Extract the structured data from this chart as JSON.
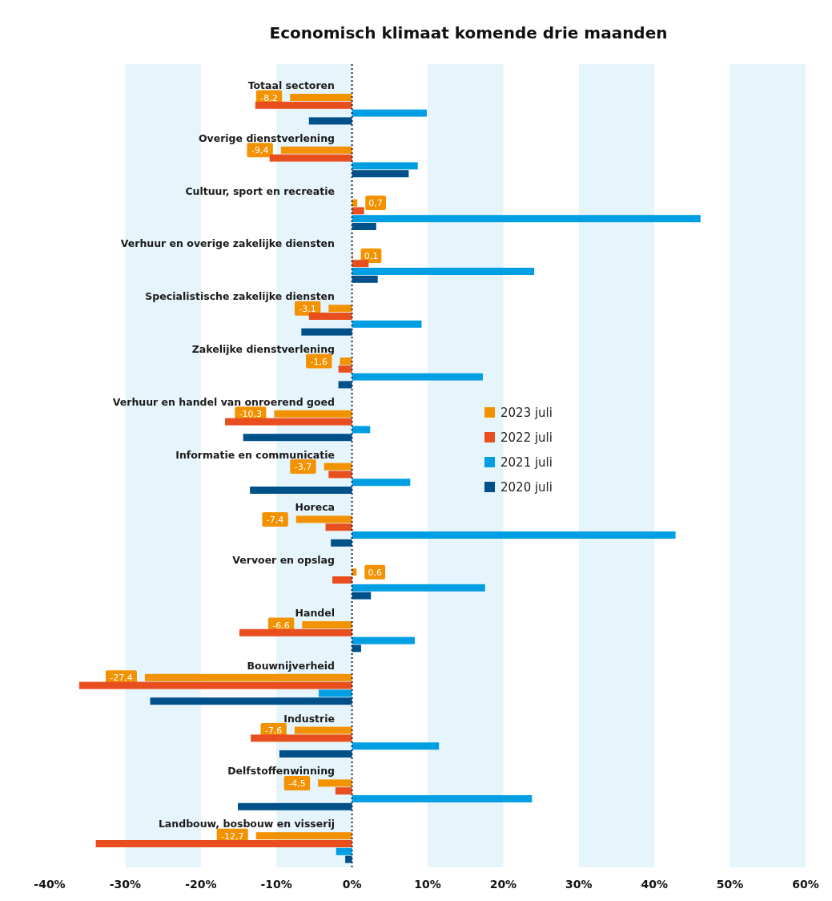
{
  "chart_data": {
    "type": "bar",
    "orientation": "horizontal",
    "title": "Economisch klimaat komende drie maanden",
    "categories": [
      "Totaal sectoren",
      "Overige dienstverlening",
      "Cultuur, sport en recreatie",
      "Verhuur en overige zakelijke diensten",
      "Specialistische zakelijke diensten",
      "Zakelijke dienstverlening",
      "Verhuur en handel van onroerend goed",
      "Informatie en communicatie",
      "Horeca",
      "Vervoer en opslag",
      "Handel",
      "Bouwnijverheid",
      "Industrie",
      "Delfstoffenwinning",
      "Landbouw, bosbouw en visserij"
    ],
    "series": [
      {
        "name": "2023 juli",
        "color": "#f39200",
        "values": [
          -8.2,
          -9.4,
          0.7,
          0.1,
          -3.1,
          -1.6,
          -10.3,
          -3.7,
          -7.4,
          0.6,
          -6.6,
          -27.4,
          -7.6,
          -4.5,
          -12.7
        ],
        "value_labels": [
          "-8,2",
          "-9,4",
          "0,7",
          "0,1",
          "-3,1",
          "-1,6",
          "-10,3",
          "-3,7",
          "-7,4",
          "0,6",
          "-6,6",
          "-27,4",
          "-7,6",
          "-4,5",
          "-12,7"
        ]
      },
      {
        "name": "2022 juli",
        "color": "#e94f1e",
        "values": [
          -12.8,
          -10.9,
          1.6,
          2.2,
          -5.7,
          -1.8,
          -16.8,
          -3.1,
          -3.5,
          -2.6,
          -14.9,
          -36.1,
          -13.4,
          -2.2,
          -33.9
        ]
      },
      {
        "name": "2021 juli",
        "color": "#009fe3",
        "values": [
          9.9,
          8.7,
          46.1,
          24.1,
          9.2,
          17.3,
          2.4,
          7.7,
          42.8,
          17.6,
          8.3,
          -4.4,
          11.5,
          23.8,
          -2.1
        ]
      },
      {
        "name": "2020 juli",
        "color": "#00508a",
        "values": [
          -5.7,
          7.5,
          3.2,
          3.4,
          -6.7,
          -1.8,
          -14.4,
          -13.5,
          -2.8,
          2.5,
          1.2,
          -26.7,
          -9.6,
          -15.1,
          -0.9
        ]
      }
    ],
    "xlim": [
      -40,
      60
    ],
    "xticks": [
      {
        "value": -40,
        "label": "-40%"
      },
      {
        "value": -30,
        "label": "-30%"
      },
      {
        "value": -20,
        "label": "-20%"
      },
      {
        "value": -10,
        "label": "-10%"
      },
      {
        "value": 0,
        "label": "0%"
      },
      {
        "value": 10,
        "label": "10%"
      },
      {
        "value": 20,
        "label": "20%"
      },
      {
        "value": 30,
        "label": "30%"
      },
      {
        "value": 40,
        "label": "40%"
      },
      {
        "value": 50,
        "label": "50%"
      },
      {
        "value": 60,
        "label": "60%"
      }
    ],
    "bands": [
      {
        "axis": "x",
        "from": -30,
        "to": -20,
        "color": "#e6f4fc"
      },
      {
        "axis": "x",
        "from": -10,
        "to": 0,
        "color": "#e6f4fc"
      },
      {
        "axis": "x",
        "from": 10,
        "to": 20,
        "color": "#e6f4fc"
      },
      {
        "axis": "x",
        "from": 30,
        "to": 40,
        "color": "#e6f4fc"
      },
      {
        "axis": "x",
        "from": 50,
        "to": 60,
        "color": "#e6f4fc"
      }
    ],
    "ref_lines": [
      {
        "axis": "x",
        "value": 0,
        "color": "#1a2b3c",
        "line_style": "dotted"
      }
    ],
    "legend": "right"
  }
}
